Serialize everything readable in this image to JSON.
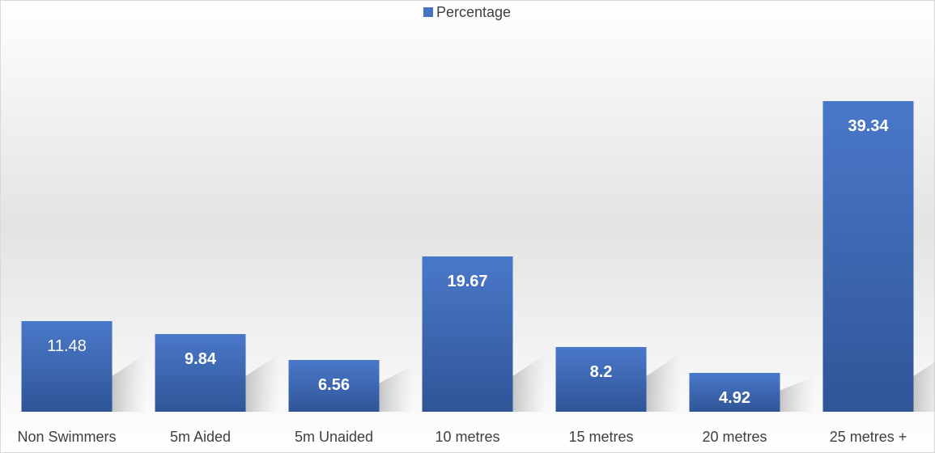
{
  "chart_data": {
    "type": "bar",
    "categories": [
      "Non Swimmers",
      "5m Aided",
      "5m Unaided",
      "10 metres",
      "15 metres",
      "20 metres",
      "25 metres +"
    ],
    "series": [
      {
        "name": "Percentage",
        "values": [
          11.48,
          9.84,
          6.56,
          19.67,
          8.2,
          4.92,
          39.34
        ],
        "data_labels": [
          "11.48",
          "9.84",
          "6.56",
          "19.67",
          "8.2",
          "4.92",
          "39.34"
        ],
        "label_bold": [
          false,
          true,
          true,
          true,
          true,
          true,
          true
        ]
      }
    ],
    "title": "",
    "xlabel": "",
    "ylabel": "",
    "ylim": [
      0,
      45
    ],
    "grid": false,
    "legend": "top-center",
    "bar_color": "#4472C4"
  }
}
